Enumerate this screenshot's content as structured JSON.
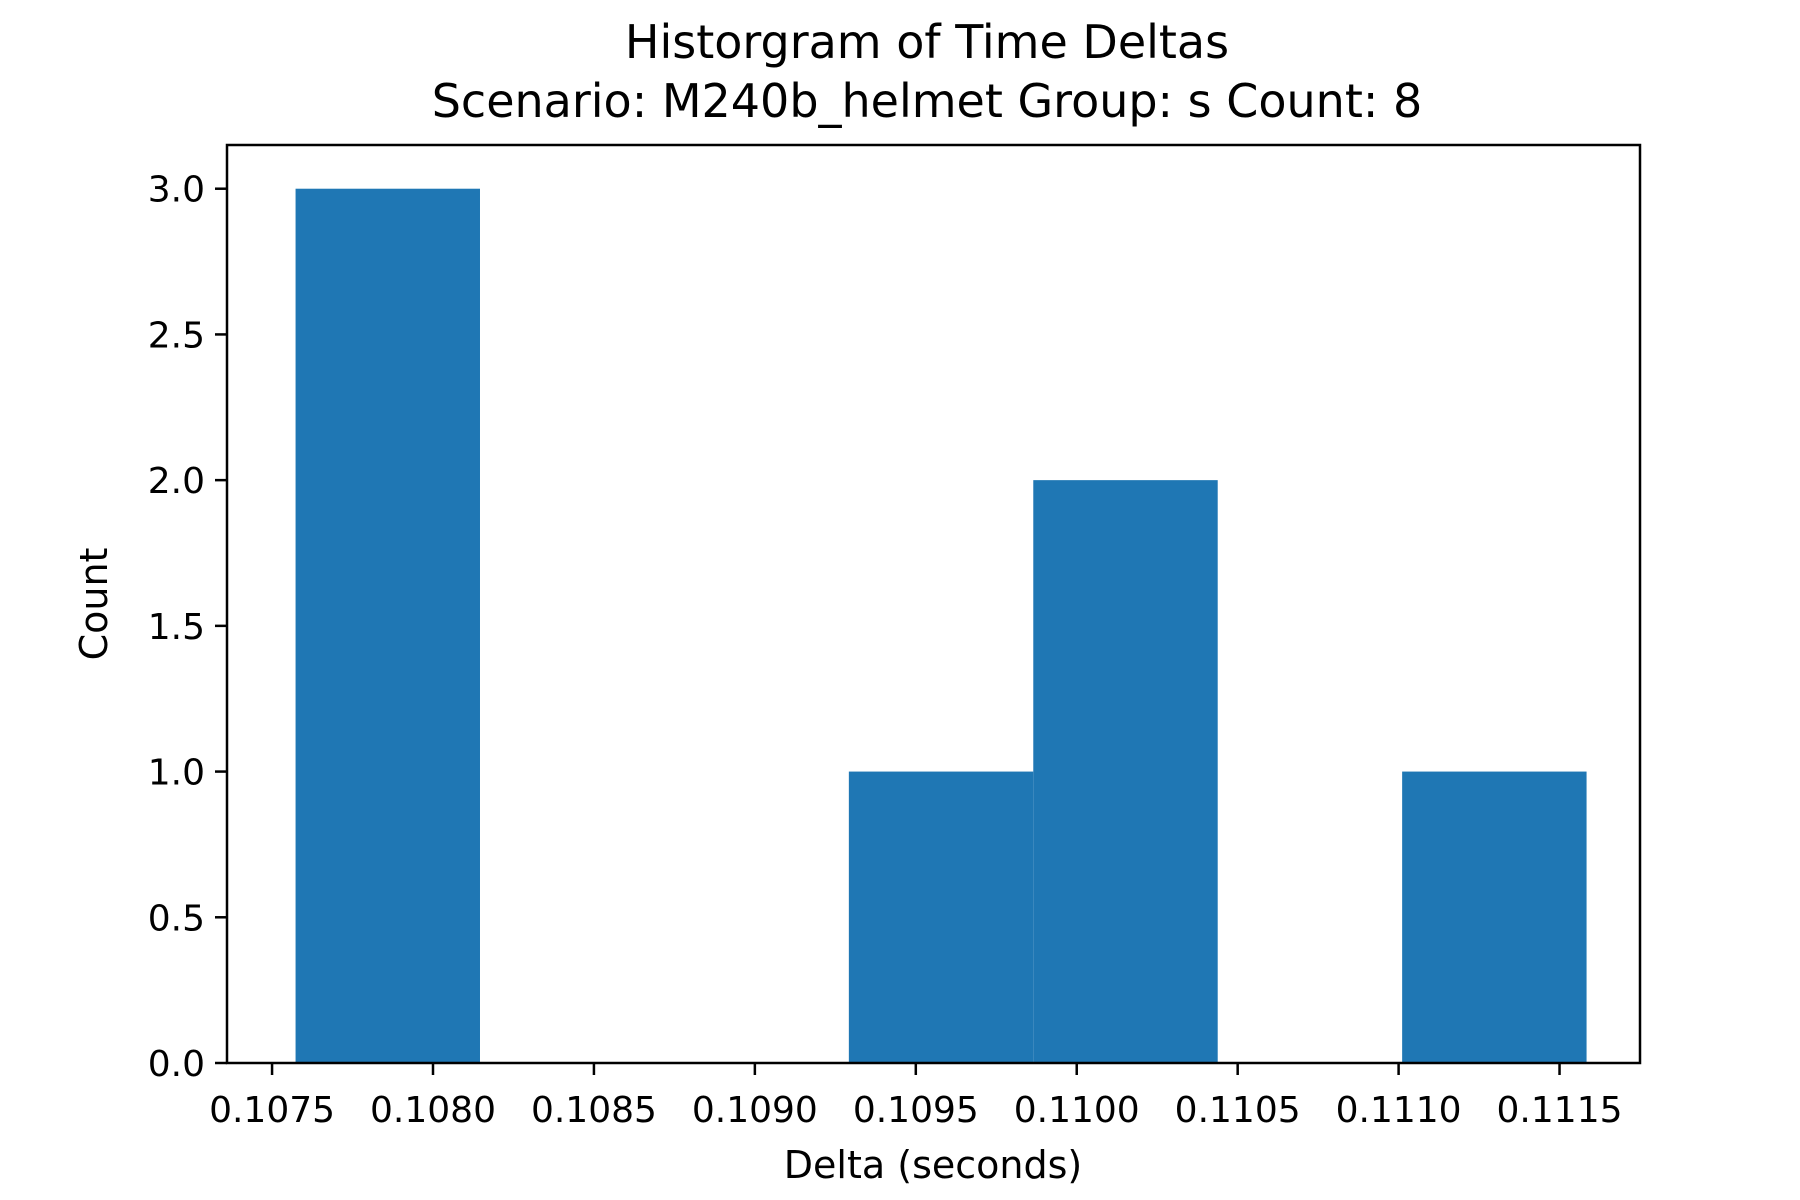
{
  "chart_data": {
    "type": "bar",
    "title_lines": [
      "Historgram of Time Deltas",
      "Scenario: M240b_helmet     Group: s     Count: 8"
    ],
    "xlabel": "Delta (seconds)",
    "ylabel": "Count",
    "bar_color": "#1f77b4",
    "xlim": [
      0.10736,
      0.11175
    ],
    "ylim": [
      0,
      3.15
    ],
    "bins": [
      {
        "start": 0.107573,
        "end": 0.108146,
        "count": 3
      },
      {
        "start": 0.108146,
        "end": 0.108719,
        "count": 0
      },
      {
        "start": 0.108719,
        "end": 0.109292,
        "count": 0
      },
      {
        "start": 0.109292,
        "end": 0.109865,
        "count": 1
      },
      {
        "start": 0.109865,
        "end": 0.110438,
        "count": 2
      },
      {
        "start": 0.110438,
        "end": 0.111011,
        "count": 0
      },
      {
        "start": 0.111011,
        "end": 0.111584,
        "count": 1
      }
    ],
    "xticks": [
      {
        "value": 0.1075,
        "label": "0.1075"
      },
      {
        "value": 0.108,
        "label": "0.1080"
      },
      {
        "value": 0.1085,
        "label": "0.1085"
      },
      {
        "value": 0.109,
        "label": "0.1090"
      },
      {
        "value": 0.1095,
        "label": "0.1095"
      },
      {
        "value": 0.11,
        "label": "0.1100"
      },
      {
        "value": 0.1105,
        "label": "0.1105"
      },
      {
        "value": 0.111,
        "label": "0.1110"
      },
      {
        "value": 0.1115,
        "label": "0.1115"
      }
    ],
    "yticks": [
      {
        "value": 0.0,
        "label": "0.0"
      },
      {
        "value": 0.5,
        "label": "0.5"
      },
      {
        "value": 1.0,
        "label": "1.0"
      },
      {
        "value": 1.5,
        "label": "1.5"
      },
      {
        "value": 2.0,
        "label": "2.0"
      },
      {
        "value": 2.5,
        "label": "2.5"
      },
      {
        "value": 3.0,
        "label": "3.0"
      }
    ],
    "grid": false,
    "legend": "none"
  }
}
